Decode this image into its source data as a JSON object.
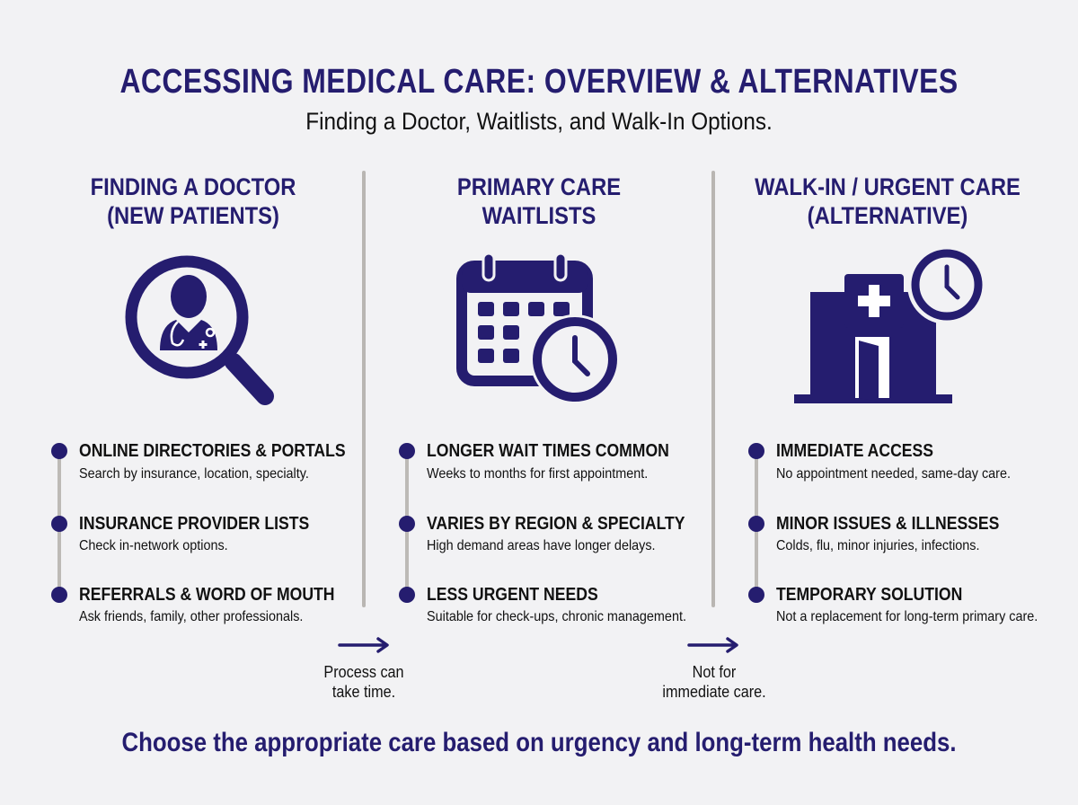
{
  "title": "ACCESSING MEDICAL CARE: OVERVIEW & ALTERNATIVES",
  "subtitle": "Finding a Doctor, Waitlists, and Walk-In Options.",
  "colors": {
    "accent": "#251d6f",
    "divider": "#b9b6b2",
    "background": "#f2f2f4"
  },
  "columns": [
    {
      "heading": [
        "FINDING A DOCTOR",
        "(NEW PATIENTS)"
      ],
      "icon": "doctor-search-magnifier-icon",
      "items": [
        {
          "title": "ONLINE DIRECTORIES & PORTALS",
          "desc": "Search by insurance, location, specialty."
        },
        {
          "title": "INSURANCE PROVIDER LISTS",
          "desc": "Check in-network options."
        },
        {
          "title": "REFERRALS & WORD OF MOUTH",
          "desc": "Ask friends, family, other professionals."
        }
      ]
    },
    {
      "heading": [
        "PRIMARY CARE",
        "WAITLISTS"
      ],
      "icon": "calendar-clock-icon",
      "items": [
        {
          "title": "LONGER WAIT TIMES COMMON",
          "desc": "Weeks to months for first appointment."
        },
        {
          "title": "VARIES BY REGION & SPECIALTY",
          "desc": "High demand areas have longer delays."
        },
        {
          "title": "LESS URGENT NEEDS",
          "desc": "Suitable for check-ups, chronic management."
        }
      ]
    },
    {
      "heading": [
        "WALK-IN / URGENT CARE",
        "(ALTERNATIVE)"
      ],
      "icon": "clinic-clock-icon",
      "items": [
        {
          "title": "IMMEDIATE ACCESS",
          "desc": "No appointment needed, same-day care."
        },
        {
          "title": "MINOR ISSUES & ILLNESSES",
          "desc": "Colds, flu, minor injuries, infections."
        },
        {
          "title": "TEMPORARY SOLUTION",
          "desc": "Not a replacement for long-term primary care."
        }
      ]
    }
  ],
  "transitions": [
    {
      "icon": "arrow-right-icon",
      "caption": [
        "Process can",
        "take time."
      ]
    },
    {
      "icon": "arrow-right-icon",
      "caption": [
        "Not for",
        "immediate care."
      ]
    }
  ],
  "footer": "Choose the appropriate care based on urgency and long-term health needs."
}
